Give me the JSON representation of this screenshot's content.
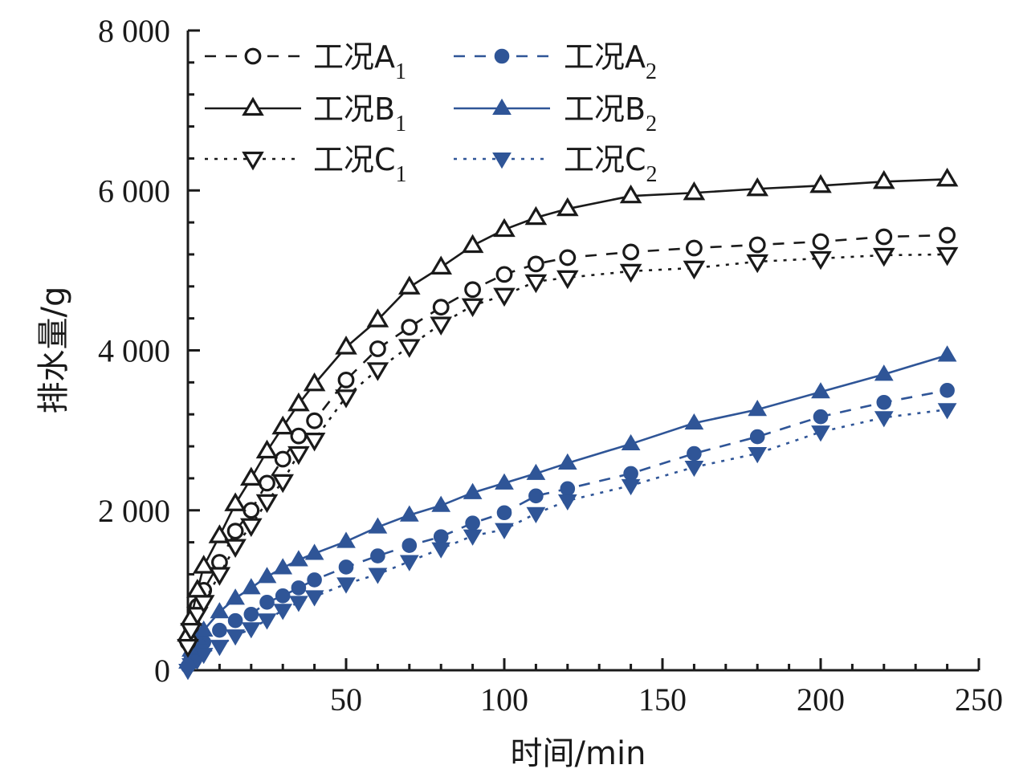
{
  "chart_data": {
    "type": "line",
    "title": "",
    "xlabel": "时间/min",
    "ylabel": "排水量/g",
    "xlim": [
      0,
      250
    ],
    "ylim": [
      0,
      8000
    ],
    "xticks": [
      50,
      100,
      150,
      200,
      250
    ],
    "xtick_labels": [
      "50",
      "100",
      "150",
      "200",
      "250"
    ],
    "x_minor_step": 10,
    "yticks": [
      0,
      2000,
      4000,
      6000,
      8000
    ],
    "ytick_labels": [
      "0",
      "2 000",
      "4 000",
      "6 000",
      "8 000"
    ],
    "y_minor_step": 400,
    "grid": false,
    "legend_position": "top-left",
    "x": [
      0,
      1,
      3,
      5,
      10,
      15,
      20,
      25,
      30,
      35,
      40,
      50,
      60,
      70,
      80,
      90,
      100,
      110,
      120,
      140,
      160,
      180,
      200,
      220,
      240
    ],
    "series": [
      {
        "name": "工况A",
        "sub": "1",
        "color": "#1a1a1a",
        "line": "dashed",
        "marker": "circle",
        "filled": false,
        "values": [
          350,
          550,
          800,
          1000,
          1350,
          1740,
          2000,
          2340,
          2640,
          2930,
          3120,
          3630,
          4020,
          4290,
          4540,
          4760,
          4950,
          5080,
          5160,
          5230,
          5280,
          5320,
          5360,
          5420,
          5440
        ]
      },
      {
        "name": "工况B",
        "sub": "1",
        "color": "#1a1a1a",
        "line": "solid",
        "marker": "triangle-up",
        "filled": false,
        "values": [
          450,
          650,
          1000,
          1300,
          1680,
          2080,
          2400,
          2740,
          3040,
          3330,
          3580,
          4040,
          4380,
          4790,
          5040,
          5310,
          5510,
          5660,
          5770,
          5930,
          5970,
          6020,
          6060,
          6110,
          6140
        ]
      },
      {
        "name": "工况C",
        "sub": "1",
        "color": "#1a1a1a",
        "line": "dotted",
        "marker": "triangle-down",
        "filled": false,
        "values": [
          300,
          500,
          700,
          850,
          1200,
          1550,
          1810,
          2110,
          2360,
          2710,
          2880,
          3420,
          3760,
          4050,
          4330,
          4560,
          4690,
          4860,
          4910,
          4990,
          5030,
          5110,
          5150,
          5190,
          5200
        ]
      },
      {
        "name": "工况A",
        "sub": "2",
        "color": "#2f5597",
        "line": "dashed",
        "marker": "circle",
        "filled": true,
        "values": [
          50,
          150,
          270,
          350,
          500,
          620,
          700,
          850,
          930,
          1030,
          1130,
          1290,
          1430,
          1560,
          1670,
          1840,
          1970,
          2180,
          2270,
          2460,
          2710,
          2920,
          3170,
          3350,
          3500
        ]
      },
      {
        "name": "工况B",
        "sub": "2",
        "color": "#2f5597",
        "line": "solid",
        "marker": "triangle-up",
        "filled": true,
        "values": [
          100,
          250,
          400,
          500,
          730,
          900,
          1030,
          1170,
          1280,
          1380,
          1460,
          1610,
          1790,
          1940,
          2060,
          2220,
          2340,
          2460,
          2590,
          2830,
          3090,
          3260,
          3480,
          3700,
          3940
        ]
      },
      {
        "name": "工况C",
        "sub": "2",
        "color": "#2f5597",
        "line": "dotted",
        "marker": "triangle-down",
        "filled": true,
        "values": [
          0,
          70,
          130,
          200,
          300,
          430,
          520,
          630,
          750,
          850,
          920,
          1080,
          1200,
          1360,
          1520,
          1680,
          1760,
          1960,
          2120,
          2310,
          2540,
          2710,
          2980,
          3160,
          3260
        ]
      }
    ]
  }
}
